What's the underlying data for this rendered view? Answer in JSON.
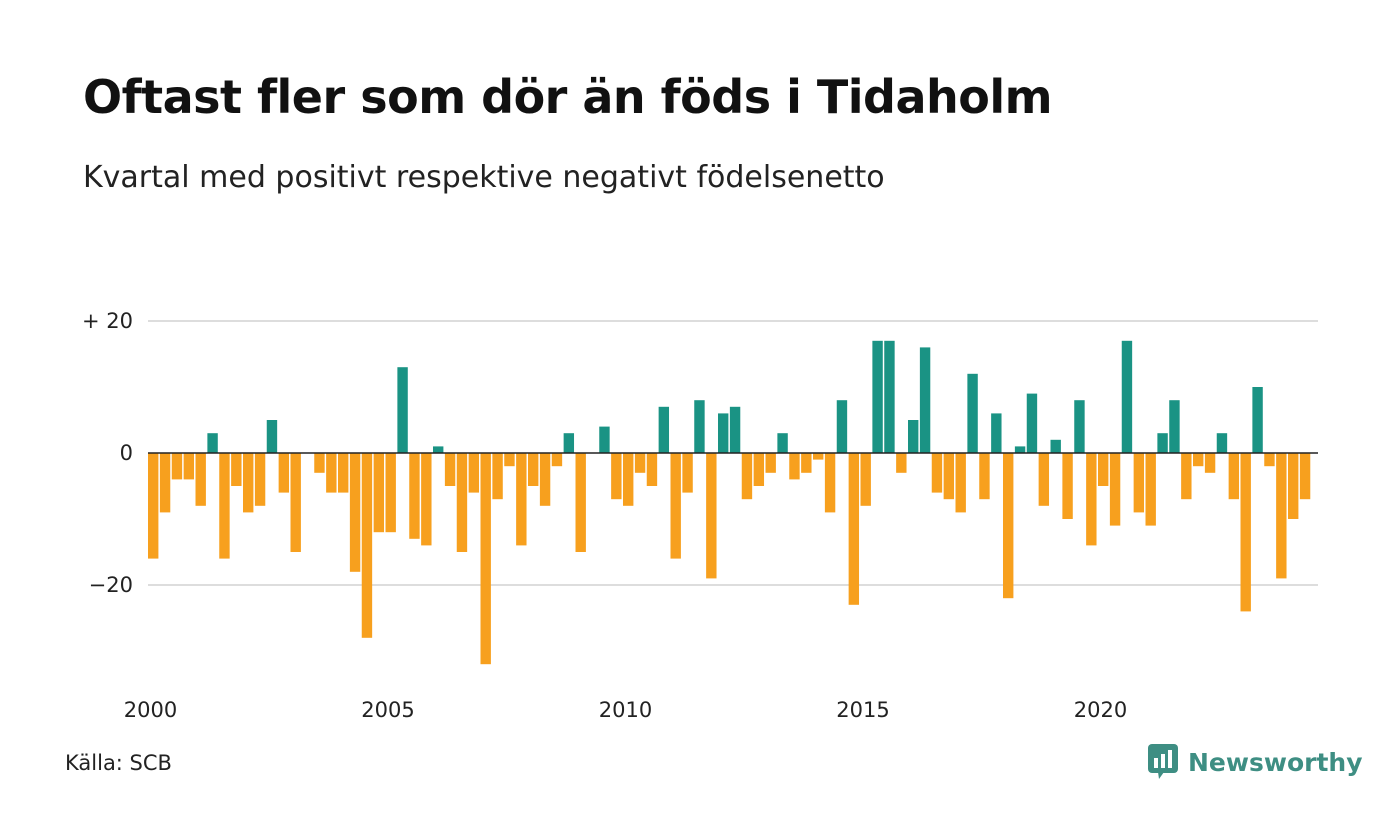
{
  "title": "Oftast fler som dör än föds i Tidaholm",
  "subtitle": "Kvartal med positivt respektive negativt födelsenetto",
  "source": "Källa: SCB",
  "brand": {
    "name": "Newsworthy",
    "icon": "newsworthy-logo-icon"
  },
  "colors": {
    "positive": "#1a9384",
    "negative": "#f7a01e",
    "grid": "#dddddd",
    "baseline": "#222222"
  },
  "chart_data": {
    "type": "bar",
    "title": "Oftast fler som dör än föds i Tidaholm",
    "subtitle": "Kvartal med positivt respektive negativt födelsenetto",
    "xlabel": "",
    "ylabel": "",
    "x_ticks": [
      "2000",
      "2005",
      "2010",
      "2015",
      "2020"
    ],
    "y_ticks": [
      {
        "value": 20,
        "label": "+ 20"
      },
      {
        "value": 0,
        "label": "0"
      },
      {
        "value": -20,
        "label": "−20"
      }
    ],
    "ylim": [
      -33,
      20
    ],
    "grid": true,
    "start": "2000 Q1",
    "values": [
      -16,
      -9,
      -4,
      -4,
      -8,
      3,
      -16,
      -5,
      -9,
      -8,
      5,
      -6,
      -15,
      0,
      -3,
      -6,
      -6,
      -18,
      -28,
      -12,
      -12,
      13,
      -13,
      -14,
      1,
      -5,
      -15,
      -6,
      -32,
      -7,
      -2,
      -14,
      -5,
      -8,
      -2,
      3,
      -15,
      0,
      4,
      -7,
      -8,
      -3,
      -5,
      7,
      -16,
      -6,
      8,
      -19,
      6,
      7,
      -7,
      -5,
      -3,
      3,
      -4,
      -3,
      -1,
      -9,
      8,
      -23,
      -8,
      17,
      17,
      -3,
      5,
      16,
      -6,
      -7,
      -9,
      12,
      -7,
      6,
      -22,
      1,
      9,
      -8,
      2,
      -10,
      8,
      -14,
      -5,
      -11,
      17,
      -9,
      -11,
      3,
      8,
      -7,
      -2,
      -3,
      3,
      -7,
      -24,
      10,
      -2,
      -19,
      -10,
      -7
    ]
  }
}
